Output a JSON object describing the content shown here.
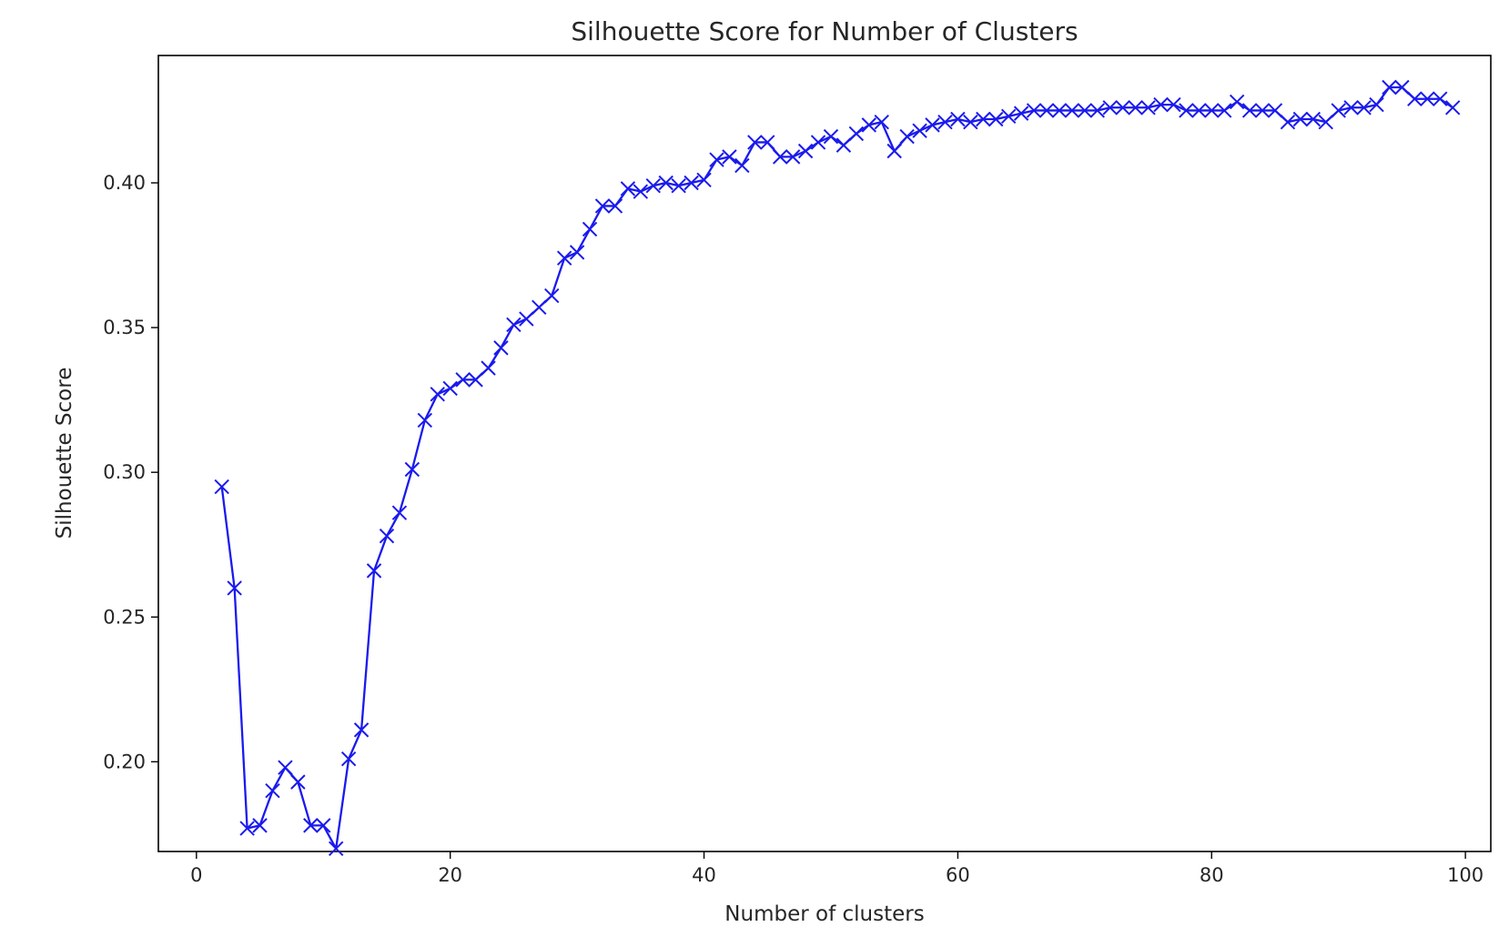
{
  "chart_data": {
    "type": "line",
    "title": "Silhouette Score for Number of Clusters",
    "xlabel": "Number of clusters",
    "ylabel": "Silhouette Score",
    "xlim": [
      -3,
      102
    ],
    "ylim": [
      0.169,
      0.444
    ],
    "xticks": [
      0,
      20,
      40,
      60,
      80,
      100
    ],
    "xtick_labels": [
      "0",
      "20",
      "40",
      "60",
      "80",
      "100"
    ],
    "yticks": [
      0.2,
      0.25,
      0.3,
      0.35,
      0.4
    ],
    "ytick_labels": [
      "0.20",
      "0.25",
      "0.30",
      "0.35",
      "0.40"
    ],
    "grid": false,
    "legend": false,
    "marker": "x",
    "line_color": "#1a1aee",
    "series": [
      {
        "x": [
          2,
          3,
          4,
          5,
          6,
          7,
          8,
          9,
          10,
          11,
          12,
          13,
          14,
          15,
          16,
          17,
          18,
          19,
          20,
          21,
          22,
          23,
          24,
          25,
          26,
          27,
          28,
          29,
          30,
          31,
          32,
          33,
          34,
          35,
          36,
          37,
          38,
          39,
          40,
          41,
          42,
          43,
          44,
          45,
          46,
          47,
          48,
          49,
          50,
          51,
          52,
          53,
          54,
          55,
          56,
          57,
          58,
          59,
          60,
          61,
          62,
          63,
          64,
          65,
          66,
          67,
          68,
          69,
          70,
          71,
          72,
          73,
          74,
          75,
          76,
          77,
          78,
          79,
          80,
          81,
          82,
          83,
          84,
          85,
          86,
          87,
          88,
          89,
          90,
          91,
          92,
          93,
          94,
          95,
          96,
          97,
          98,
          99
        ],
        "values": [
          0.295,
          0.26,
          0.177,
          0.178,
          0.19,
          0.198,
          0.193,
          0.178,
          0.178,
          0.17,
          0.201,
          0.211,
          0.266,
          0.278,
          0.286,
          0.301,
          0.318,
          0.327,
          0.329,
          0.332,
          0.332,
          0.336,
          0.343,
          0.351,
          0.353,
          0.357,
          0.361,
          0.374,
          0.376,
          0.384,
          0.392,
          0.392,
          0.398,
          0.397,
          0.399,
          0.4,
          0.399,
          0.4,
          0.401,
          0.408,
          0.409,
          0.406,
          0.414,
          0.414,
          0.409,
          0.409,
          0.411,
          0.414,
          0.416,
          0.413,
          0.417,
          0.42,
          0.421,
          0.411,
          0.416,
          0.418,
          0.42,
          0.421,
          0.422,
          0.421,
          0.422,
          0.422,
          0.423,
          0.424,
          0.425,
          0.425,
          0.425,
          0.425,
          0.425,
          0.425,
          0.426,
          0.426,
          0.426,
          0.426,
          0.427,
          0.427,
          0.425,
          0.425,
          0.425,
          0.425,
          0.428,
          0.425,
          0.425,
          0.425,
          0.421,
          0.422,
          0.422,
          0.421,
          0.425,
          0.426,
          0.426,
          0.427,
          0.433,
          0.433,
          0.429,
          0.429,
          0.429,
          0.426
        ]
      }
    ]
  }
}
